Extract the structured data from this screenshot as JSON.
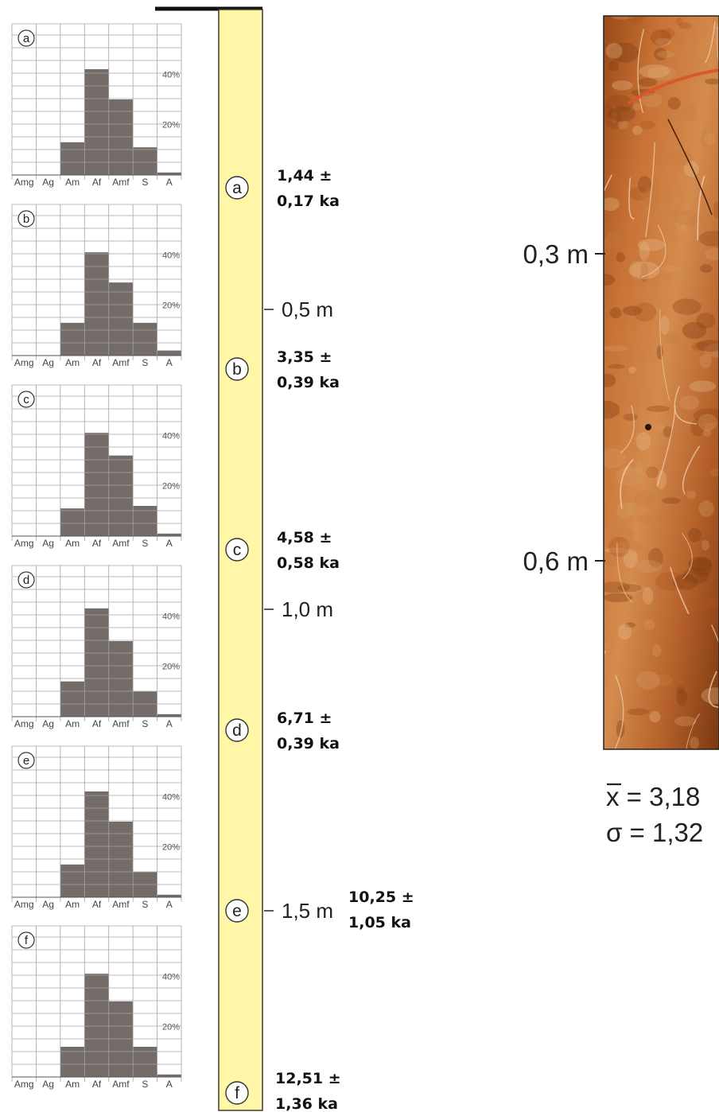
{
  "colors": {
    "bar": "#736c68",
    "grid": "#a8a3a1",
    "column_fill": "#fff6a8",
    "column_stroke": "#3b3b2c",
    "soil_dark": "#8a3f12",
    "soil_mid": "#c3692c",
    "soil_light": "#e0a06a"
  },
  "chart_data": [
    {
      "type": "bar",
      "panel": "a",
      "categories": [
        "Amg",
        "Ag",
        "Am",
        "Af",
        "Amf",
        "S",
        "A"
      ],
      "values": [
        0,
        0,
        13,
        42,
        30,
        11,
        1
      ],
      "ylim": [
        0,
        60
      ],
      "tick_labels": [
        "20%",
        "40%"
      ],
      "grid": true
    },
    {
      "type": "bar",
      "panel": "b",
      "categories": [
        "Amg",
        "Ag",
        "Am",
        "Af",
        "Amf",
        "S",
        "A"
      ],
      "values": [
        0,
        0,
        13,
        41,
        29,
        13,
        2
      ],
      "ylim": [
        0,
        60
      ],
      "tick_labels": [
        "20%",
        "40%"
      ],
      "grid": true
    },
    {
      "type": "bar",
      "panel": "c",
      "categories": [
        "Amg",
        "Ag",
        "Am",
        "Af",
        "Amf",
        "S",
        "A"
      ],
      "values": [
        0,
        0,
        11,
        41,
        32,
        12,
        1
      ],
      "ylim": [
        0,
        60
      ],
      "tick_labels": [
        "20%",
        "40%"
      ],
      "grid": true
    },
    {
      "type": "bar",
      "panel": "d",
      "categories": [
        "Amg",
        "Ag",
        "Am",
        "Af",
        "Amf",
        "S",
        "A"
      ],
      "values": [
        0,
        0,
        14,
        43,
        30,
        10,
        1
      ],
      "ylim": [
        0,
        60
      ],
      "tick_labels": [
        "20%",
        "40%"
      ],
      "grid": true
    },
    {
      "type": "bar",
      "panel": "e",
      "categories": [
        "Amg",
        "Ag",
        "Am",
        "Af",
        "Amf",
        "S",
        "A"
      ],
      "values": [
        0,
        0,
        13,
        42,
        30,
        10,
        1
      ],
      "ylim": [
        0,
        60
      ],
      "tick_labels": [
        "20%",
        "40%"
      ],
      "grid": true
    },
    {
      "type": "bar",
      "panel": "f",
      "categories": [
        "Amg",
        "Ag",
        "Am",
        "Af",
        "Amf",
        "S",
        "A"
      ],
      "values": [
        0,
        0,
        12,
        41,
        30,
        12,
        1
      ],
      "ylim": [
        0,
        60
      ],
      "tick_labels": [
        "20%",
        "40%"
      ],
      "grid": true
    }
  ],
  "column": {
    "markers": [
      "a",
      "b",
      "c",
      "d",
      "e",
      "f"
    ],
    "depth_ticks": [
      "0,5 m",
      "1,0 m",
      "1,5 m"
    ]
  },
  "dates": [
    {
      "marker": "a",
      "line1": "1,44 ±",
      "line2": "0,17 ka"
    },
    {
      "marker": "b",
      "line1": "3,35 ±",
      "line2": "0,39 ka"
    },
    {
      "marker": "c",
      "line1": "4,58 ±",
      "line2": "0,58 ka"
    },
    {
      "marker": "d",
      "line1": "6,71 ±",
      "line2": "0,39 ka"
    },
    {
      "marker": "e",
      "line1": "10,25 ±",
      "line2": "1,05 ka"
    },
    {
      "marker": "f",
      "line1": "12,51 ±",
      "line2": "1,36 ka"
    }
  ],
  "photo": {
    "depth_labels": [
      "0,3 m",
      "0,6 m"
    ]
  },
  "stats": {
    "mean": "x = 3,18",
    "sigma": "σ = 1,32"
  }
}
